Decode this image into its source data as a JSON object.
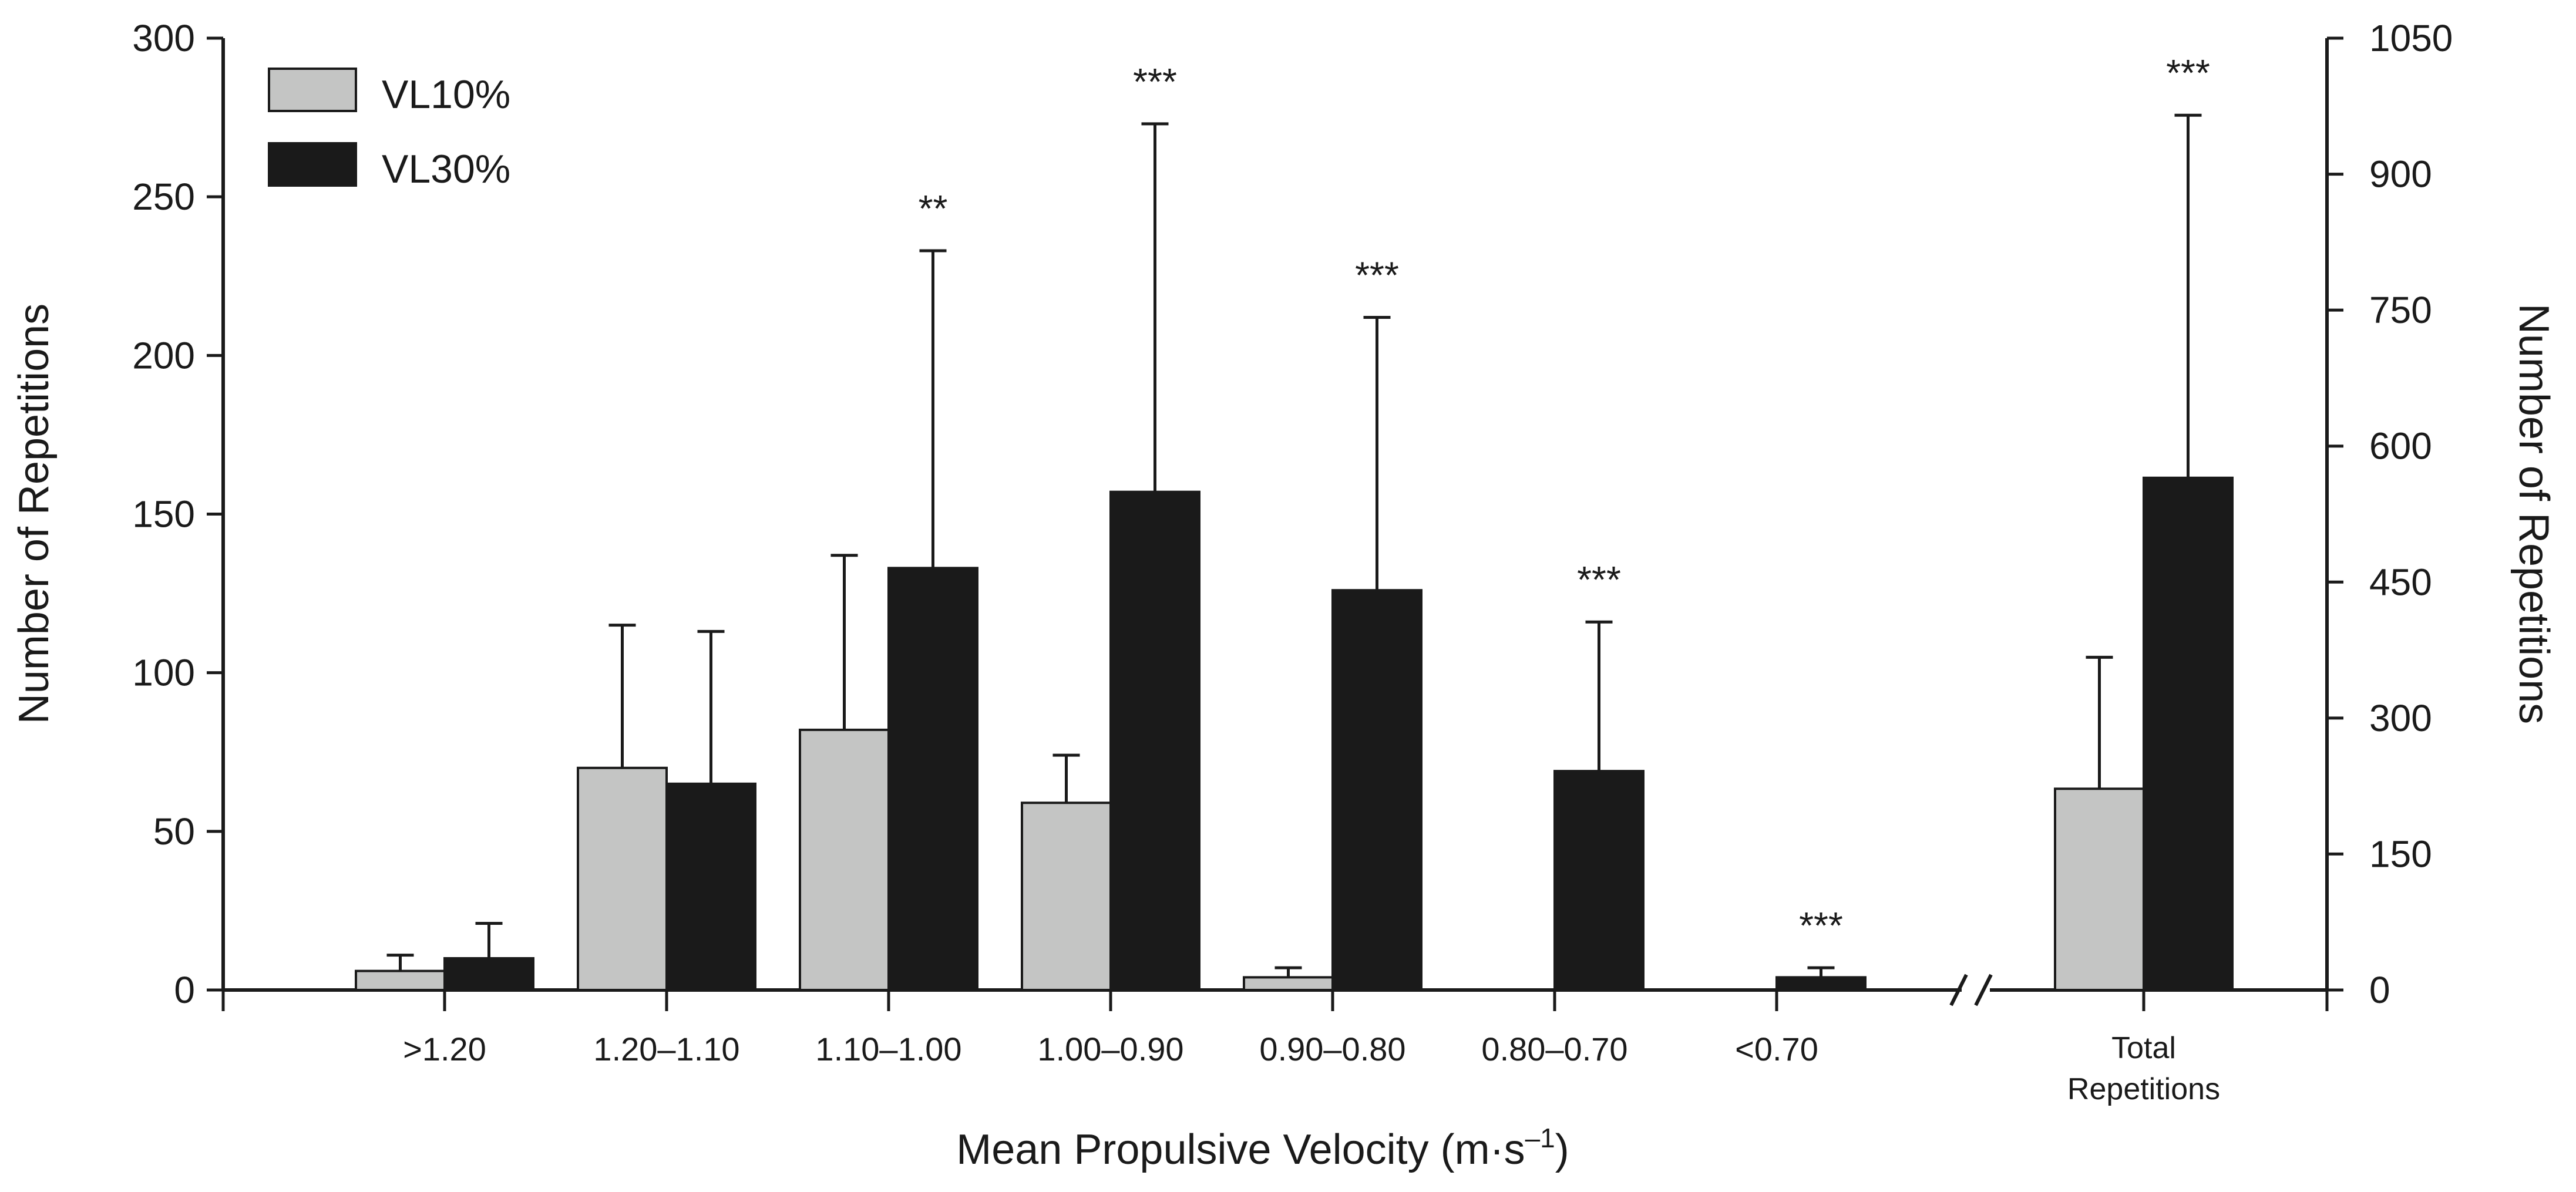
{
  "chart_data": {
    "type": "bar",
    "categories": [
      ">1.20",
      "1.20–1.10",
      "1.10–1.00",
      "1.00–0.90",
      "0.90–0.80",
      "0.80–0.70",
      "<0.70"
    ],
    "series": [
      {
        "name": "VL10%",
        "color": "#c4c5c4",
        "values": [
          6,
          70,
          82,
          59,
          4,
          0,
          0
        ],
        "errors": [
          5,
          45,
          55,
          15,
          3,
          0,
          0
        ]
      },
      {
        "name": "VL30%",
        "color": "#1a1a1a",
        "values": [
          10,
          65,
          133,
          157,
          126,
          69,
          4
        ],
        "errors": [
          11,
          48,
          100,
          116,
          86,
          47,
          3
        ]
      }
    ],
    "significance": [
      "",
      "",
      "**",
      "***",
      "***",
      "***",
      "***"
    ],
    "total": {
      "label_line1": "Total",
      "label_line2": "Repetitions",
      "VL10%": 222,
      "VL10%_error": 145,
      "VL30%": 565,
      "VL30%_error": 400,
      "significance": "***"
    },
    "xlabel_main": "Mean Propulsive Velocity (m·s",
    "xlabel_sup": "–1",
    "xlabel_end": ")",
    "ylabel_left": "Number of Repetitions",
    "ylabel_right": "Number of Repetitions",
    "ylim_left": [
      0,
      300
    ],
    "yticks_left": [
      0,
      50,
      100,
      150,
      200,
      250,
      300
    ],
    "ylim_right": [
      0,
      1050
    ],
    "yticks_right": [
      0,
      150,
      300,
      450,
      600,
      750,
      900,
      1050
    ],
    "legend": [
      "VL10%",
      "VL30%"
    ],
    "legend_position": "top-left"
  }
}
